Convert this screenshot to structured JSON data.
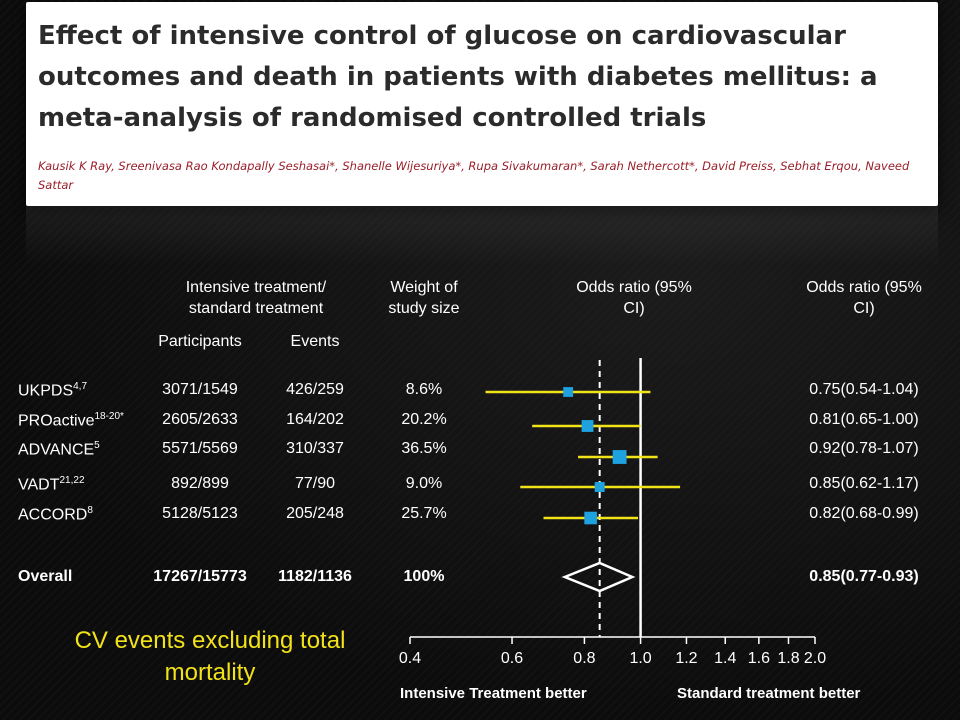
{
  "paper": {
    "title": "Effect of intensive control of glucose on cardiovascular outcomes and death in patients with diabetes mellitus: a meta-analysis of randomised controlled trials",
    "authors": "Kausik K Ray, Sreenivasa Rao Kondapally Seshasai*, Shanelle Wijesuriya*, Rupa Sivakumaran*, Sarah Nethercott*, David Preiss, Sebhat Erqou, Naveed Sattar"
  },
  "headers": {
    "group": "Intensive treatment/ standard treatment",
    "participants": "Participants",
    "events": "Events",
    "weight": "Weight of study size",
    "or_plot": "Odds ratio (95% CI)",
    "or_text": "Odds ratio (95% CI)"
  },
  "caption": "CV events excluding total mortality",
  "footer": {
    "left": "Intensive Treatment better",
    "right": "Standard treatment better"
  },
  "colors": {
    "ci_line": "#f2e21a",
    "marker": "#1ea3e0",
    "caption": "#f2e21a"
  },
  "chart_data": {
    "type": "forest",
    "x_scale": "log",
    "xlim": [
      0.4,
      2.0
    ],
    "xticks": [
      "0.4",
      "0.6",
      "0.8",
      "1.0",
      "1.2",
      "1.4",
      "1.6",
      "1.8",
      "2.0"
    ],
    "reference_line": 1.0,
    "pooled_line": 0.85,
    "studies": [
      {
        "name": "UKPDS",
        "sup": "4,7",
        "participants": "3071/1549",
        "events": "426/259",
        "weight": "8.6%",
        "or": 0.75,
        "lo": 0.54,
        "hi": 1.04,
        "or_text": "0.75(0.54-1.04)"
      },
      {
        "name": "PROactive",
        "sup": "18-20*",
        "participants": "2605/2633",
        "events": "164/202",
        "weight": "20.2%",
        "or": 0.81,
        "lo": 0.65,
        "hi": 1.0,
        "or_text": "0.81(0.65-1.00)"
      },
      {
        "name": "ADVANCE",
        "sup": "5",
        "participants": "5571/5569",
        "events": "310/337",
        "weight": "36.5%",
        "or": 0.92,
        "lo": 0.78,
        "hi": 1.07,
        "or_text": "0.92(0.78-1.07)"
      },
      {
        "name": "VADT",
        "sup": "21,22",
        "participants": "892/899",
        "events": "77/90",
        "weight": "9.0%",
        "or": 0.85,
        "lo": 0.62,
        "hi": 1.17,
        "or_text": "0.85(0.62-1.17)"
      },
      {
        "name": "ACCORD",
        "sup": "8",
        "participants": "5128/5123",
        "events": "205/248",
        "weight": "25.7%",
        "or": 0.82,
        "lo": 0.68,
        "hi": 0.99,
        "or_text": "0.82(0.68-0.99)"
      }
    ],
    "overall": {
      "name": "Overall",
      "participants": "17267/15773",
      "events": "1182/1136",
      "weight": "100%",
      "or": 0.85,
      "lo": 0.77,
      "hi": 0.93,
      "or_text": "0.85(0.77-0.93)"
    }
  }
}
